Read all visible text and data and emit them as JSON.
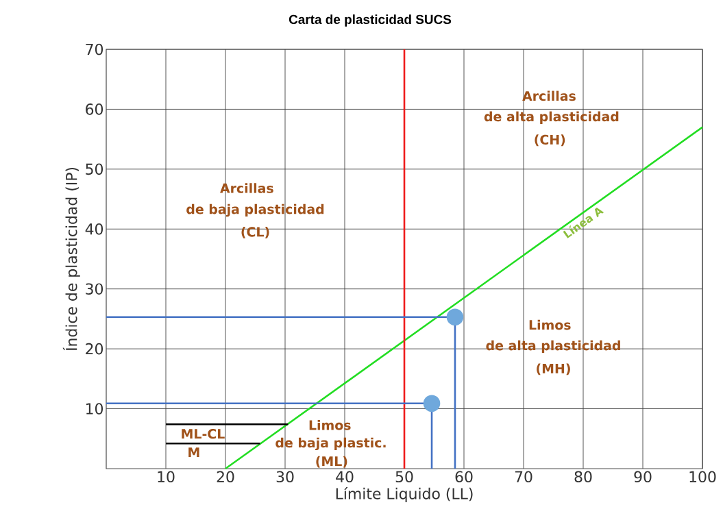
{
  "chart_data": {
    "type": "line",
    "title": "Carta de plasticidad SUCS",
    "xlabel": "Límite Liquido (LL)",
    "ylabel": "Índice de plasticidad (IP)",
    "xlim": [
      0,
      100
    ],
    "ylim": [
      0,
      70
    ],
    "xticks": [
      10,
      20,
      30,
      40,
      50,
      60,
      70,
      80,
      90,
      100
    ],
    "yticks": [
      10,
      20,
      30,
      40,
      50,
      60,
      70
    ],
    "grid": true,
    "series": [
      {
        "name": "Línea A",
        "color": "#22dd22",
        "x": [
          20,
          100
        ],
        "values": [
          0,
          57
        ]
      },
      {
        "color": "#ee1c1c",
        "x": [
          50,
          50
        ],
        "values": [
          0,
          70
        ]
      },
      {
        "color": "#4472c4",
        "x": [
          0,
          58.5,
          58.5
        ],
        "values": [
          25.3,
          25.3,
          0
        ]
      },
      {
        "color": "#4472c4",
        "x": [
          0,
          54.6,
          54.6
        ],
        "values": [
          10.9,
          10.9,
          0
        ]
      },
      {
        "color": "#000000",
        "x": [
          10,
          30.5
        ],
        "values": [
          7.4,
          7.4
        ]
      },
      {
        "color": "#000000",
        "x": [
          10,
          25.8
        ],
        "values": [
          4.2,
          4.2
        ]
      },
      {
        "type": "scatter",
        "marker": "circle",
        "color": "#6fa8dc",
        "x": [
          58.5,
          54.6
        ],
        "values": [
          25.3,
          10.9
        ]
      }
    ],
    "annotations": [
      "Arcillas",
      "de baja plasticidad",
      "(CL)",
      "Arcillas",
      "de alta plasticidad",
      "(CH)",
      "Limos",
      "de alta plasticidad",
      "(MH)",
      "Limos",
      "de baja plastic.",
      "(ML)",
      "ML-CL",
      "M"
    ]
  }
}
